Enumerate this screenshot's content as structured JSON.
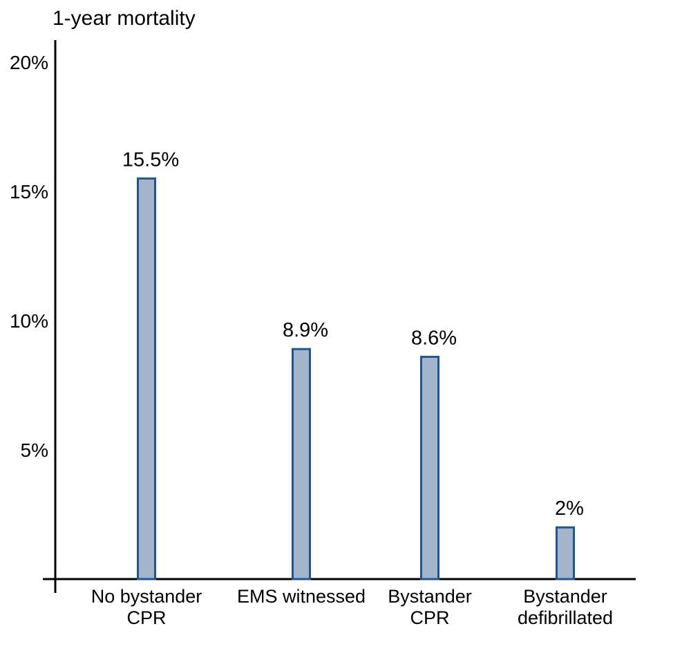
{
  "chart_data": {
    "type": "bar",
    "title": "",
    "ylabel": "1-year mortality",
    "xlabel": "",
    "ylim": [
      0,
      20
    ],
    "yticks": [
      5,
      10,
      15,
      20
    ],
    "ytick_labels": [
      "5%",
      "10%",
      "15%",
      "20%"
    ],
    "categories": [
      [
        "No bystander",
        "CPR"
      ],
      [
        "EMS witnessed"
      ],
      [
        "Bystander",
        "CPR"
      ],
      [
        "Bystander",
        "defibrillated"
      ]
    ],
    "values": [
      15.5,
      8.9,
      8.6,
      2
    ],
    "value_labels": [
      "15.5%",
      "8.9%",
      "8.6%",
      "2%"
    ],
    "grid": false,
    "legend": "none",
    "colors": {
      "bar_fill": "#a2b5cb",
      "bar_stroke": "#1f5591",
      "axis": "#000000"
    }
  }
}
